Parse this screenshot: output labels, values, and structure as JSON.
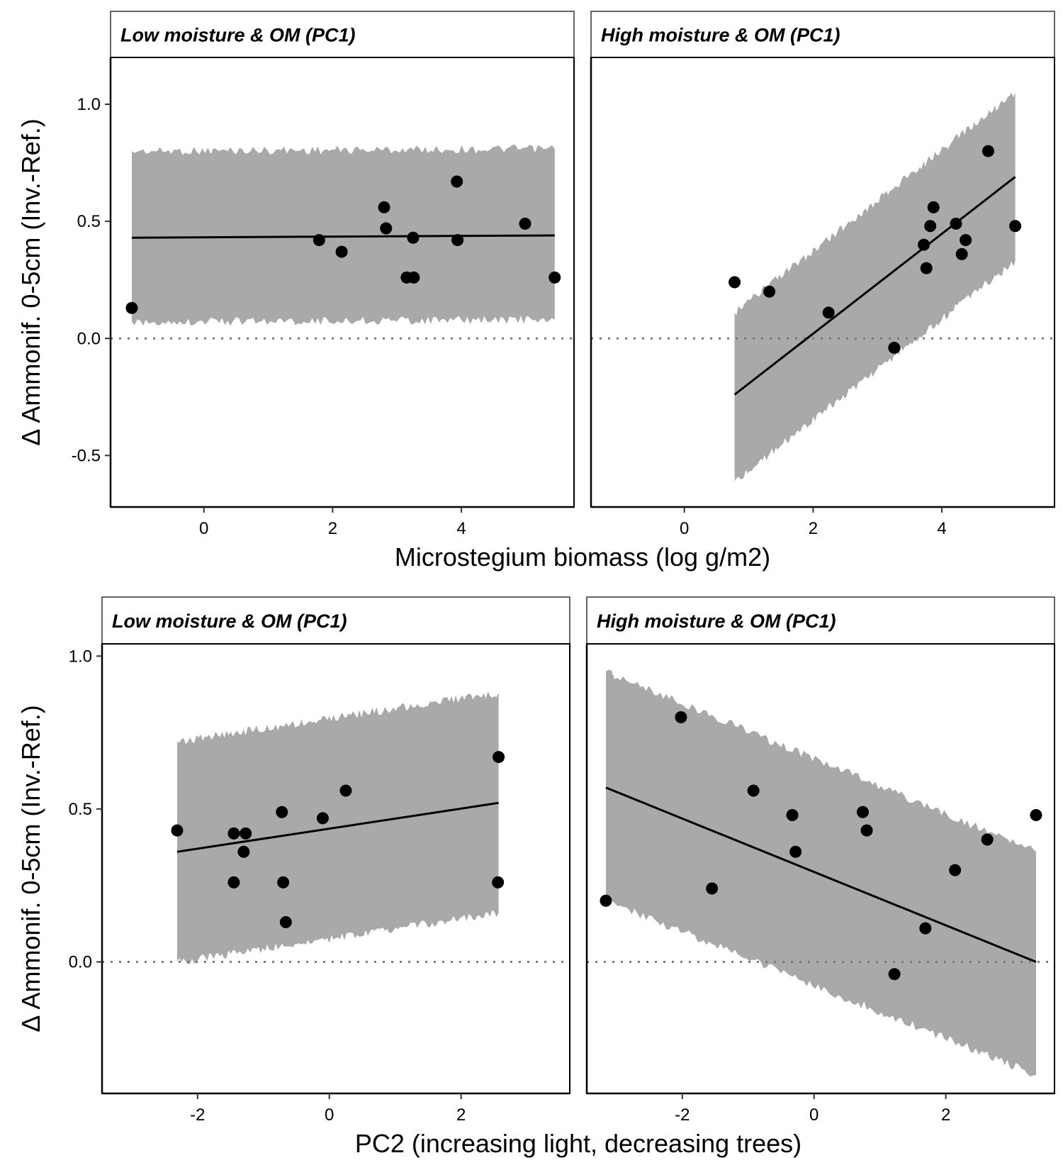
{
  "figure": {
    "row1_xlabel": "Microstegium biomass (log g/m2)",
    "row2_xlabel": "PC2 (increasing light, decreasing trees)",
    "ylabel": "Δ Ammonif. 0-5cm (Inv.-Ref.)"
  },
  "chart_data": [
    {
      "type": "scatter",
      "panel": "top-left",
      "strip_title": "Low moisture & OM (PC1)",
      "xlabel": "Microstegium biomass (log g/m2)",
      "ylabel": "Δ Ammonif. 0-5cm (Inv.-Ref.)",
      "xlim": [
        -1.45,
        5.75
      ],
      "ylim": [
        -0.72,
        1.2
      ],
      "xticks": [
        0,
        2,
        4
      ],
      "yticks": [
        -0.5,
        0.0,
        0.5,
        1.0
      ],
      "ytick_labels": [
        "-0.5",
        "0.0",
        "0.5",
        "1.0"
      ],
      "points": [
        {
          "x": -1.12,
          "y": 0.13
        },
        {
          "x": 1.79,
          "y": 0.42
        },
        {
          "x": 2.14,
          "y": 0.37
        },
        {
          "x": 2.8,
          "y": 0.56
        },
        {
          "x": 2.83,
          "y": 0.47
        },
        {
          "x": 3.15,
          "y": 0.26
        },
        {
          "x": 3.26,
          "y": 0.26
        },
        {
          "x": 3.25,
          "y": 0.43
        },
        {
          "x": 3.93,
          "y": 0.67
        },
        {
          "x": 3.94,
          "y": 0.42
        },
        {
          "x": 4.99,
          "y": 0.49
        },
        {
          "x": 5.45,
          "y": 0.26
        }
      ],
      "fit": {
        "x": [
          -1.12,
          5.45
        ],
        "y": [
          0.43,
          0.44
        ]
      },
      "band": {
        "x": [
          -1.12,
          5.45
        ],
        "upper": [
          0.8,
          0.81
        ],
        "lower": [
          0.07,
          0.08
        ]
      },
      "reference_line": 0
    },
    {
      "type": "scatter",
      "panel": "top-right",
      "strip_title": "High moisture & OM (PC1)",
      "xlabel": "Microstegium biomass (log g/m2)",
      "xlim": [
        -1.45,
        5.75
      ],
      "ylim": [
        -0.72,
        1.2
      ],
      "xticks": [
        0,
        2,
        4
      ],
      "points": [
        {
          "x": 0.78,
          "y": 0.24
        },
        {
          "x": 1.32,
          "y": 0.2
        },
        {
          "x": 2.24,
          "y": 0.11
        },
        {
          "x": 3.26,
          "y": -0.04
        },
        {
          "x": 3.72,
          "y": 0.4
        },
        {
          "x": 3.76,
          "y": 0.3
        },
        {
          "x": 3.82,
          "y": 0.48
        },
        {
          "x": 3.87,
          "y": 0.56
        },
        {
          "x": 4.22,
          "y": 0.49
        },
        {
          "x": 4.31,
          "y": 0.36
        },
        {
          "x": 4.37,
          "y": 0.42
        },
        {
          "x": 4.72,
          "y": 0.8
        },
        {
          "x": 5.14,
          "y": 0.48
        }
      ],
      "fit": {
        "x": [
          0.78,
          5.14
        ],
        "y": [
          -0.24,
          0.69
        ]
      },
      "band": {
        "x": [
          0.78,
          5.14
        ],
        "upper": [
          0.11,
          1.05
        ],
        "lower": [
          -0.61,
          0.33
        ]
      },
      "reference_line": 0
    },
    {
      "type": "scatter",
      "panel": "bottom-left",
      "strip_title": "Low moisture & OM (PC1)",
      "xlabel": "PC2 (increasing light, decreasing trees)",
      "ylabel": "Δ Ammonif. 0-5cm (Inv.-Ref.)",
      "xlim": [
        -3.45,
        3.65
      ],
      "ylim": [
        -0.43,
        1.04
      ],
      "xticks": [
        -2,
        0,
        2
      ],
      "yticks": [
        0.0,
        0.5,
        1.0
      ],
      "ytick_labels": [
        "0.0",
        "0.5",
        "1.0"
      ],
      "points": [
        {
          "x": -2.31,
          "y": 0.43
        },
        {
          "x": -1.45,
          "y": 0.42
        },
        {
          "x": -1.45,
          "y": 0.26
        },
        {
          "x": -1.27,
          "y": 0.42
        },
        {
          "x": -1.3,
          "y": 0.36
        },
        {
          "x": -0.72,
          "y": 0.49
        },
        {
          "x": -0.7,
          "y": 0.26
        },
        {
          "x": -0.66,
          "y": 0.13
        },
        {
          "x": -0.1,
          "y": 0.47
        },
        {
          "x": 0.25,
          "y": 0.56
        },
        {
          "x": 2.57,
          "y": 0.67
        },
        {
          "x": 2.56,
          "y": 0.26
        }
      ],
      "fit": {
        "x": [
          -2.31,
          2.57
        ],
        "y": [
          0.36,
          0.52
        ]
      },
      "band": {
        "x": [
          -2.31,
          2.57
        ],
        "upper": [
          0.72,
          0.88
        ],
        "lower": [
          0.0,
          0.16
        ]
      },
      "reference_line": 0
    },
    {
      "type": "scatter",
      "panel": "bottom-right",
      "strip_title": "High moisture & OM (PC1)",
      "xlabel": "PC2 (increasing light, decreasing trees)",
      "xlim": [
        -3.45,
        3.65
      ],
      "ylim": [
        -0.43,
        1.04
      ],
      "xticks": [
        -2,
        0,
        2
      ],
      "points": [
        {
          "x": -3.16,
          "y": 0.2
        },
        {
          "x": -2.02,
          "y": 0.8
        },
        {
          "x": -1.55,
          "y": 0.24
        },
        {
          "x": -0.92,
          "y": 0.56
        },
        {
          "x": -0.33,
          "y": 0.48
        },
        {
          "x": -0.28,
          "y": 0.36
        },
        {
          "x": 0.74,
          "y": 0.49
        },
        {
          "x": 0.8,
          "y": 0.43
        },
        {
          "x": 1.22,
          "y": -0.04
        },
        {
          "x": 1.69,
          "y": 0.11
        },
        {
          "x": 2.14,
          "y": 0.3
        },
        {
          "x": 2.63,
          "y": 0.4
        },
        {
          "x": 3.37,
          "y": 0.48
        }
      ],
      "fit": {
        "x": [
          -3.16,
          3.37
        ],
        "y": [
          0.57,
          0.0
        ]
      },
      "band": {
        "x": [
          -3.16,
          3.37
        ],
        "upper": [
          0.95,
          0.36
        ],
        "lower": [
          0.2,
          -0.37
        ]
      },
      "reference_line": 0
    }
  ]
}
